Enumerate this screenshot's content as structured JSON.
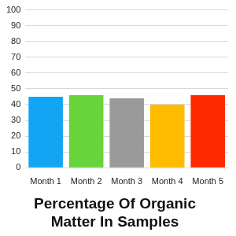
{
  "chart_data": {
    "type": "bar",
    "title": "Percentage Of Organic Matter In Samples",
    "categories": [
      "Month 1",
      "Month 2",
      "Month 3",
      "Month 4",
      "Month 5"
    ],
    "values": [
      45,
      46,
      44,
      40,
      46
    ],
    "colors": [
      "#12a5f4",
      "#66d43a",
      "#9a9a9a",
      "#ffbb00",
      "#ff2a00"
    ],
    "ylim": [
      0,
      100
    ],
    "yticks": [
      0,
      10,
      20,
      30,
      40,
      50,
      60,
      70,
      80,
      90,
      100
    ],
    "grid": true
  }
}
